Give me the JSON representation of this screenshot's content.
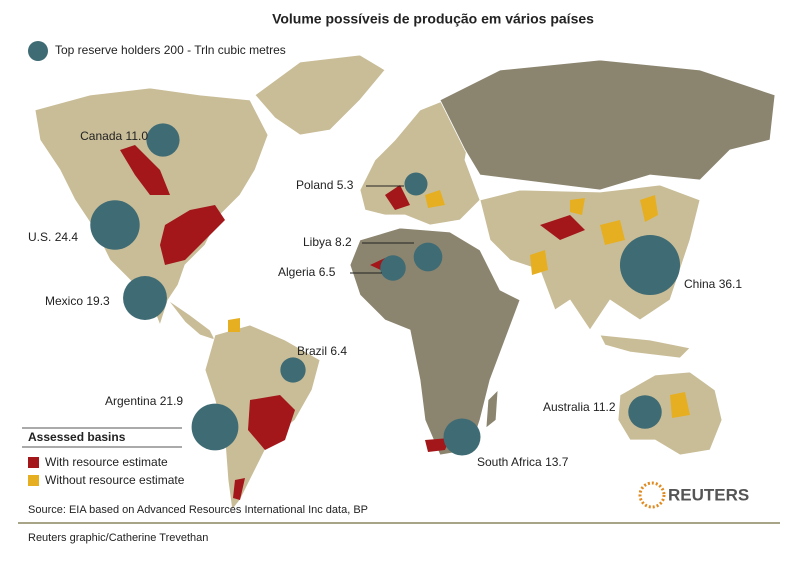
{
  "title": "Volume possíveis de produção em vários países",
  "legend": {
    "bubble": "Top reserve holders 200 - Trln cubic metres"
  },
  "markers": [
    {
      "name": "Canada",
      "value": 11,
      "label": "11.0"
    },
    {
      "name": "U.S.",
      "value": 24.4
    },
    {
      "name": "Mexico",
      "value": 19.3
    },
    {
      "name": "Poland",
      "value": 5.3
    },
    {
      "name": "Libya",
      "value": 8.2
    },
    {
      "name": "Algeria",
      "value": 6.5
    },
    {
      "name": "Brazil",
      "value": 6.4
    },
    {
      "name": "Argentina",
      "value": 21.9
    },
    {
      "name": "South Africa",
      "value": 13.7
    },
    {
      "name": "China",
      "value": 36.1
    },
    {
      "name": "Australia",
      "value": 11.2
    }
  ],
  "basins_legend": {
    "title": "Assessed basins",
    "items": [
      "With resource estimate",
      "Without resource estimate"
    ]
  },
  "source": "Source: EIA based on Advanced Resources International Inc data, BP",
  "logo": "REUTERS",
  "credit": "Reuters graphic/Catherine Trevethan"
}
